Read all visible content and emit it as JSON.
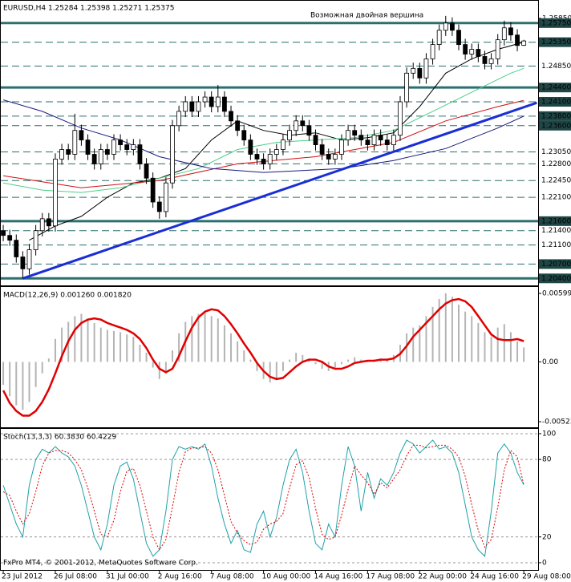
{
  "chart_data": [
    {
      "type": "candlestick",
      "title": "EURUSD,H4  1.25284 1.25398 1.25271 1.25375",
      "annotation": "Возможная двойная вершина",
      "annotation_color": "#1a1aff",
      "categories": [
        "23 Jul 2012",
        null,
        null,
        null,
        null,
        null,
        null,
        null,
        "26 Jul 08:00",
        null,
        null,
        null,
        null,
        null,
        null,
        null,
        "31 Jul 00:00",
        null,
        null,
        null,
        null,
        null,
        null,
        null,
        "2 Aug 16:00",
        null,
        null,
        null,
        null,
        null,
        null,
        null,
        "7 Aug 08:00",
        null,
        null,
        null,
        null,
        null,
        null,
        null,
        "10 Aug 00:00",
        null,
        null,
        null,
        null,
        null,
        null,
        null,
        "14 Aug 16:00",
        null,
        null,
        null,
        null,
        null,
        null,
        null,
        "17 Aug 08:00",
        null,
        null,
        null,
        null,
        null,
        null,
        null,
        "22 Aug 00:00",
        null,
        null,
        null,
        null,
        null,
        null,
        null,
        "24 Aug 16:00",
        null,
        null,
        null,
        null,
        null,
        null,
        null,
        "29 Aug 08:00"
      ],
      "open": [
        1.214,
        1.213,
        1.212,
        1.2085,
        1.206,
        1.21,
        1.214,
        1.2165,
        1.215,
        1.229,
        1.231,
        1.23,
        1.235,
        1.233,
        1.23,
        1.228,
        1.231,
        1.23,
        1.233,
        1.232,
        1.231,
        1.232,
        1.228,
        1.225,
        1.22,
        1.218,
        1.224,
        1.236,
        1.239,
        1.241,
        1.239,
        1.241,
        1.242,
        1.24,
        1.242,
        1.239,
        1.237,
        1.235,
        1.233,
        1.23,
        1.229,
        1.228,
        1.23,
        1.231,
        1.233,
        1.235,
        1.237,
        1.236,
        1.234,
        1.232,
        1.23,
        1.229,
        1.23,
        1.233,
        1.235,
        1.234,
        1.233,
        1.232,
        1.234,
        1.233,
        1.232,
        1.234,
        1.241,
        1.247,
        1.248,
        1.246,
        1.25,
        1.253,
        1.256,
        1.2575,
        1.256,
        1.253,
        1.251,
        1.252,
        1.2505,
        1.249,
        1.25,
        1.254,
        1.2565,
        1.255,
        1.25284
      ],
      "high": [
        1.2152,
        1.2142,
        1.2132,
        1.2097,
        1.2112,
        1.2152,
        1.2177,
        1.2177,
        1.2302,
        1.2322,
        1.2322,
        1.2385,
        1.2362,
        1.2342,
        1.2312,
        1.2322,
        1.2322,
        1.2342,
        1.2342,
        1.2332,
        1.2332,
        1.2332,
        1.2292,
        1.2262,
        1.2212,
        1.2252,
        1.2372,
        1.2402,
        1.2422,
        1.2422,
        1.2422,
        1.2432,
        1.2432,
        1.2445,
        1.2432,
        1.2402,
        1.2382,
        1.2362,
        1.2342,
        1.2312,
        1.2302,
        1.2312,
        1.2322,
        1.2342,
        1.2362,
        1.2382,
        1.2382,
        1.2372,
        1.2352,
        1.2332,
        1.2312,
        1.2312,
        1.2342,
        1.2362,
        1.2362,
        1.2352,
        1.2342,
        1.2352,
        1.2352,
        1.2342,
        1.2352,
        1.2422,
        1.2482,
        1.2492,
        1.2492,
        1.2512,
        1.2542,
        1.2572,
        1.259,
        1.2587,
        1.2572,
        1.2542,
        1.2532,
        1.2532,
        1.2517,
        1.2512,
        1.2552,
        1.258,
        1.2577,
        1.2562,
        1.25398
      ],
      "low": [
        1.2118,
        1.2108,
        1.2073,
        1.204,
        1.2048,
        1.2088,
        1.2128,
        1.2138,
        1.2138,
        1.2278,
        1.2288,
        1.2288,
        1.2318,
        1.2288,
        1.2268,
        1.2268,
        1.2288,
        1.2288,
        1.2308,
        1.2298,
        1.2298,
        1.2268,
        1.2238,
        1.2188,
        1.2165,
        1.2168,
        1.2228,
        1.2348,
        1.2378,
        1.2378,
        1.2378,
        1.2398,
        1.2388,
        1.2388,
        1.2378,
        1.2358,
        1.2338,
        1.2318,
        1.2288,
        1.2278,
        1.2268,
        1.2268,
        1.2288,
        1.2298,
        1.2318,
        1.2338,
        1.2348,
        1.2328,
        1.2308,
        1.2288,
        1.2278,
        1.2278,
        1.2288,
        1.2318,
        1.2328,
        1.2318,
        1.2308,
        1.2308,
        1.2318,
        1.2308,
        1.2308,
        1.2328,
        1.2398,
        1.2458,
        1.2448,
        1.2448,
        1.2488,
        1.2518,
        1.2548,
        1.2548,
        1.2518,
        1.2498,
        1.2498,
        1.2493,
        1.2478,
        1.2478,
        1.2488,
        1.2528,
        1.2538,
        1.2516,
        1.25271
      ],
      "close": [
        1.213,
        1.212,
        1.2085,
        1.206,
        1.21,
        1.214,
        1.2165,
        1.215,
        1.229,
        1.231,
        1.23,
        1.235,
        1.233,
        1.23,
        1.228,
        1.231,
        1.23,
        1.233,
        1.232,
        1.231,
        1.232,
        1.228,
        1.225,
        1.22,
        1.218,
        1.224,
        1.236,
        1.239,
        1.241,
        1.239,
        1.241,
        1.242,
        1.24,
        1.242,
        1.239,
        1.237,
        1.235,
        1.233,
        1.23,
        1.229,
        1.228,
        1.23,
        1.231,
        1.233,
        1.235,
        1.237,
        1.236,
        1.234,
        1.232,
        1.23,
        1.229,
        1.23,
        1.233,
        1.235,
        1.234,
        1.233,
        1.232,
        1.234,
        1.233,
        1.232,
        1.234,
        1.241,
        1.247,
        1.248,
        1.246,
        1.25,
        1.253,
        1.256,
        1.2575,
        1.256,
        1.253,
        1.251,
        1.252,
        1.2505,
        1.249,
        1.25,
        1.254,
        1.2565,
        1.255,
        1.2528,
        1.25375
      ],
      "up_color": "#ffffff",
      "down_color": "#000000",
      "wick_color": "#000000",
      "lines": [
        {
          "color": "#000000",
          "width": 1,
          "x": [
            4,
            8,
            12,
            16,
            20,
            24,
            28,
            32,
            36,
            40,
            44,
            48,
            52,
            56,
            60,
            64,
            68,
            72,
            76,
            80
          ],
          "values": [
            1.212,
            1.215,
            1.217,
            1.221,
            1.224,
            1.225,
            1.227,
            1.233,
            1.237,
            1.235,
            1.234,
            1.2345,
            1.233,
            1.2335,
            1.2345,
            1.24,
            1.247,
            1.25,
            1.252,
            1.2535
          ]
        },
        {
          "color": "#4ccf8a",
          "width": 1,
          "x": [
            0,
            6,
            12,
            18,
            24,
            30,
            36,
            42,
            48,
            54,
            60,
            66,
            72,
            78,
            80
          ],
          "values": [
            1.224,
            1.2225,
            1.222,
            1.223,
            1.225,
            1.227,
            1.231,
            1.2325,
            1.233,
            1.2335,
            1.235,
            1.239,
            1.243,
            1.247,
            1.248
          ]
        },
        {
          "color": "#d01010",
          "width": 1,
          "x": [
            0,
            12,
            24,
            36,
            48,
            60,
            68,
            76,
            80
          ],
          "values": [
            1.2255,
            1.223,
            1.2245,
            1.228,
            1.2295,
            1.2325,
            1.237,
            1.24,
            1.2413
          ]
        },
        {
          "color": "#1a1a80",
          "width": 1,
          "x": [
            0,
            6,
            12,
            18,
            24,
            32,
            40,
            52,
            60,
            68,
            76,
            80
          ],
          "values": [
            1.2414,
            1.239,
            1.2355,
            1.233,
            1.2295,
            1.227,
            1.2262,
            1.227,
            1.2287,
            1.2312,
            1.2355,
            1.238
          ]
        },
        {
          "color": "#1a2ed6",
          "width": 3,
          "x": [
            3,
            82
          ],
          "values": [
            1.204,
            1.2408
          ]
        }
      ],
      "levels": [
        {
          "value": 1.2575,
          "label": "1.25750",
          "style": "solid",
          "boxed": true
        },
        {
          "value": 1.2535,
          "label": "1.25350",
          "style": "dashed",
          "boxed": true
        },
        {
          "value": 1.2485,
          "label": "1.24850",
          "style": "dashed",
          "boxed": false
        },
        {
          "value": 1.244,
          "label": "1.24400",
          "style": "solid",
          "boxed": true
        },
        {
          "value": 1.241,
          "label": "1.24100",
          "style": "dashed",
          "boxed": true
        },
        {
          "value": 1.238,
          "label": "1.23800",
          "style": "dashed",
          "boxed": true
        },
        {
          "value": 1.236,
          "label": "1.23600",
          "style": "dashed",
          "boxed": true
        },
        {
          "value": 1.2305,
          "label": "1.23050",
          "style": "dashed",
          "boxed": false
        },
        {
          "value": 1.228,
          "label": "1.22800",
          "style": "dashed",
          "boxed": false
        },
        {
          "value": 1.2245,
          "label": "1.22450",
          "style": "dashed",
          "boxed": false
        },
        {
          "value": 1.221,
          "label": "1.22100",
          "style": "dashed",
          "boxed": false
        },
        {
          "value": 1.216,
          "label": "1.21600",
          "style": "solid",
          "boxed": true
        },
        {
          "value": 1.214,
          "label": "1.21400",
          "style": "dashed",
          "boxed": false
        },
        {
          "value": 1.211,
          "label": "1.21100",
          "style": "dashed",
          "boxed": false
        },
        {
          "value": 1.207,
          "label": "1.20700",
          "style": "dashed",
          "boxed": true
        },
        {
          "value": 1.204,
          "label": "1.20400",
          "style": "solid",
          "boxed": true
        }
      ],
      "level_color": "#2b6f6f",
      "xlim": [
        -0.5,
        82.2
      ],
      "ylim": [
        1.2027,
        1.262
      ],
      "yticks": [
        {
          "value": 1.2585,
          "label": "1.25850"
        }
      ],
      "grid": false
    },
    {
      "type": "combo",
      "title": "MACD(12,26,9) 0.001260 0.001820",
      "series": [
        {
          "kind": "bar",
          "color": "#b4b4b4",
          "values": [
            -0.002,
            -0.003,
            -0.0038,
            -0.0042,
            -0.0035,
            -0.0022,
            -0.001,
            0.0003,
            0.002,
            0.003,
            0.0035,
            0.004,
            0.0042,
            0.0038,
            0.0034,
            0.003,
            0.0028,
            0.0027,
            0.0026,
            0.0024,
            0.0022,
            0.0015,
            0.0008,
            -0.0005,
            -0.0015,
            -0.001,
            0.001,
            0.0025,
            0.0035,
            0.004,
            0.0042,
            0.0043,
            0.004,
            0.0038,
            0.0032,
            0.0025,
            0.0018,
            0.001,
            0.0002,
            -0.0008,
            -0.0015,
            -0.0018,
            -0.0016,
            -0.0008,
            0.0002,
            0.0008,
            0.0006,
            0.0003,
            -0.0002,
            -0.0006,
            -0.0008,
            -0.0005,
            -0.0002,
            0.0002,
            0.0004,
            0.0002,
            0.0,
            0.0002,
            0.0003,
            0.0002,
            0.0006,
            0.0015,
            0.0025,
            0.003,
            0.0032,
            0.004,
            0.0048,
            0.0055,
            0.006,
            0.0057,
            0.005,
            0.0044,
            0.004,
            0.0034,
            0.0026,
            0.0022,
            0.003,
            0.0033,
            0.0026,
            0.0018,
            0.00126
          ]
        },
        {
          "kind": "line",
          "color": "#e00000",
          "width": 2.5,
          "values": [
            -0.0025,
            -0.0036,
            -0.0043,
            -0.0047,
            -0.0047,
            -0.0043,
            -0.0035,
            -0.0024,
            -0.001,
            0.0005,
            0.0018,
            0.0028,
            0.0034,
            0.0037,
            0.0038,
            0.0037,
            0.0034,
            0.0032,
            0.003,
            0.0028,
            0.0025,
            0.002,
            0.0012,
            0.0002,
            -0.0006,
            -0.0009,
            -0.0006,
            0.0005,
            0.0018,
            0.003,
            0.0039,
            0.0044,
            0.0046,
            0.0045,
            0.004,
            0.0033,
            0.0025,
            0.0016,
            0.0008,
            -0.0001,
            -0.0008,
            -0.0013,
            -0.0015,
            -0.0014,
            -0.0009,
            -0.0004,
            0.0,
            0.0002,
            0.0002,
            0.0,
            -0.0004,
            -0.0006,
            -0.0006,
            -0.0004,
            -0.0001,
            0.0,
            0.0001,
            0.0001,
            0.0002,
            0.0002,
            0.0003,
            0.0007,
            0.0014,
            0.0022,
            0.0028,
            0.0034,
            0.004,
            0.0046,
            0.0051,
            0.0054,
            0.0055,
            0.0053,
            0.0048,
            0.004,
            0.0032,
            0.0024,
            0.002,
            0.0019,
            0.0019,
            0.002,
            0.00182
          ]
        }
      ],
      "ylim": [
        -0.00565,
        0.00641
      ],
      "yticks": [
        0.00599,
        {
          "value": 0,
          "label": "0.00"
        },
        -0.00523
      ],
      "grid": false
    },
    {
      "type": "line",
      "title": "Stoch(13,3,3) 60.3830 60.4229",
      "series": [
        {
          "color": "#20a0a8",
          "width": 1,
          "dashed": false,
          "values": [
            60,
            45,
            30,
            20,
            60,
            80,
            88,
            85,
            90,
            85,
            82,
            75,
            60,
            40,
            20,
            10,
            30,
            60,
            75,
            78,
            65,
            40,
            15,
            5,
            10,
            40,
            80,
            90,
            88,
            90,
            88,
            92,
            75,
            50,
            30,
            15,
            25,
            10,
            8,
            30,
            40,
            20,
            35,
            60,
            80,
            88,
            70,
            40,
            15,
            10,
            30,
            20,
            60,
            90,
            75,
            40,
            70,
            50,
            65,
            60,
            70,
            85,
            95,
            92,
            85,
            90,
            95,
            88,
            90,
            85,
            70,
            45,
            20,
            10,
            5,
            40,
            85,
            92,
            85,
            70,
            60.383
          ]
        },
        {
          "color": "#e00000",
          "width": 1,
          "dashed": true,
          "values": [
            55,
            52,
            40,
            30,
            38,
            55,
            75,
            85,
            87,
            87,
            85,
            80,
            72,
            58,
            40,
            22,
            20,
            33,
            55,
            71,
            73,
            60,
            40,
            20,
            10,
            18,
            43,
            70,
            86,
            89,
            89,
            90,
            85,
            72,
            52,
            32,
            23,
            17,
            14,
            16,
            26,
            30,
            32,
            38,
            58,
            76,
            79,
            66,
            42,
            22,
            18,
            20,
            37,
            57,
            75,
            68,
            62,
            53,
            62,
            58,
            65,
            72,
            83,
            91,
            91,
            89,
            90,
            91,
            91,
            88,
            82,
            67,
            45,
            25,
            12,
            18,
            43,
            72,
            87,
            82,
            60.4229
          ]
        }
      ],
      "ylim": [
        -5,
        103.7
      ],
      "yticks": [
        100,
        80,
        20,
        0
      ],
      "grid": true
    },
    {
      "type": "text",
      "footer": "FxPro MT4, © 2001-2012, MetaQuotes Software Corp."
    }
  ]
}
